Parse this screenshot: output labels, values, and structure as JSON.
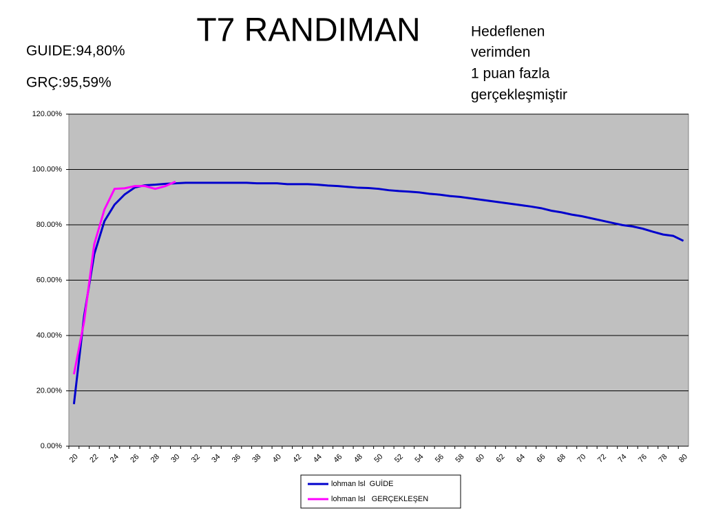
{
  "chart_data": {
    "type": "line",
    "title": "T7 RANDIMAN",
    "annotations": [
      "GUIDE:94,80%",
      "GRÇ:95,59%"
    ],
    "note": [
      "Hedeflenen",
      "verimden",
      "1 puan fazla",
      "gerçekleşmiştir"
    ],
    "categories": [
      "20",
      null,
      "22",
      null,
      "24",
      null,
      "26",
      null,
      "28",
      null,
      "30",
      null,
      "32",
      null,
      "34",
      null,
      "36",
      null,
      "38",
      null,
      "40",
      null,
      "42",
      null,
      "44",
      null,
      "46",
      null,
      "48",
      null,
      "50",
      null,
      "52",
      null,
      "54",
      null,
      "56",
      null,
      "58",
      null,
      "60",
      null,
      "62",
      null,
      "64",
      null,
      "66",
      null,
      "68",
      null,
      "70",
      null,
      "72",
      null,
      "74",
      null,
      "76",
      null,
      "78",
      null,
      "80"
    ],
    "series": [
      {
        "name": "lohman lsl  GUİDE",
        "color": "#0000cc",
        "values": [
          15.2,
          47,
          69.4,
          81.3,
          87.3,
          91,
          93.5,
          94.3,
          94.5,
          94.8,
          95,
          95.2,
          95.2,
          95.2,
          95.2,
          95.2,
          95.2,
          95.2,
          95,
          95,
          95,
          94.7,
          94.7,
          94.7,
          94.5,
          94.2,
          94,
          93.7,
          93.4,
          93.3,
          93,
          92.5,
          92.2,
          92,
          91.7,
          91.2,
          90.9,
          90.4,
          90.1,
          89.6,
          89.1,
          88.6,
          88.1,
          87.6,
          87.1,
          86.6,
          86,
          85.1,
          84.5,
          83.7,
          83.1,
          82.3,
          81.5,
          80.7,
          79.9,
          79.4,
          78.6,
          77.5,
          76.5,
          76,
          74.2
        ]
      },
      {
        "name": "lohman lsl   GERÇEKLEŞEN",
        "color": "#ff00ff",
        "values": [
          26,
          45,
          73,
          85.5,
          93,
          93.2,
          94,
          94,
          93,
          94,
          95.6,
          null,
          null,
          null,
          null,
          null,
          null,
          null,
          null,
          null,
          null,
          null,
          null,
          null,
          null,
          null,
          null,
          null,
          null,
          null,
          null,
          null,
          null,
          null,
          null,
          null,
          null,
          null,
          null,
          null,
          null,
          null,
          null,
          null,
          null,
          null,
          null,
          null,
          null,
          null,
          null,
          null,
          null,
          null,
          null,
          null,
          null,
          null,
          null,
          null,
          null
        ]
      }
    ],
    "ylim": [
      0,
      120
    ],
    "yticks": [
      {
        "value": 0,
        "label": "0.00%"
      },
      {
        "value": 20,
        "label": "20.00%"
      },
      {
        "value": 40,
        "label": "40.00%"
      },
      {
        "value": 60,
        "label": "60.00%"
      },
      {
        "value": 80,
        "label": "80.00%"
      },
      {
        "value": 100,
        "label": "100.00%"
      },
      {
        "value": 120,
        "label": "120.00%"
      }
    ],
    "grid": true,
    "legend": "bottom",
    "plot_color": "#c0c0c0"
  }
}
